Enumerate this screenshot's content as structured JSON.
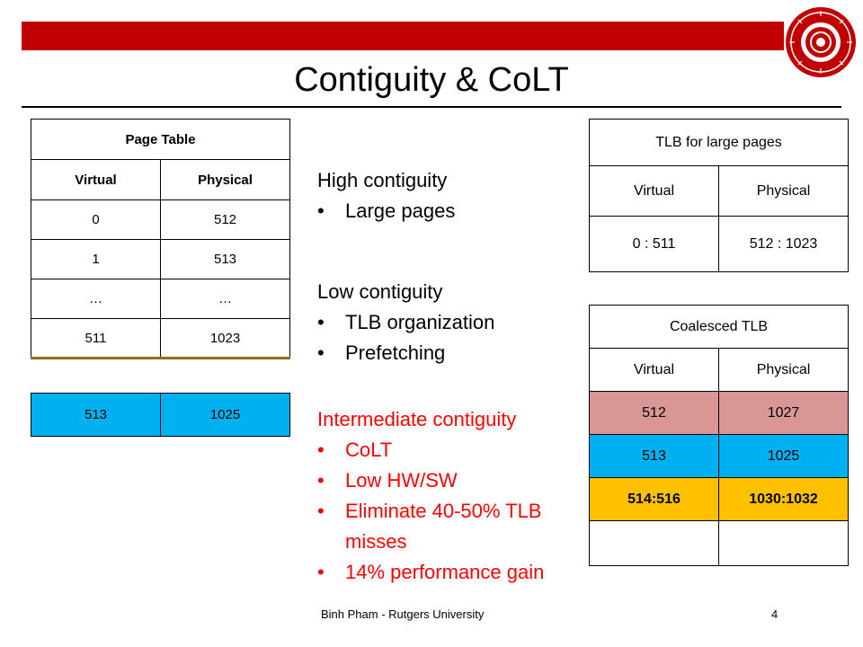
{
  "title": "Contiguity & CoLT",
  "page_table": {
    "heading": "Page Table",
    "col_virtual": "Virtual",
    "col_physical": "Physical",
    "rows": [
      {
        "virtual": "0",
        "physical": "512"
      },
      {
        "virtual": "1",
        "physical": "513"
      },
      {
        "virtual": "…",
        "physical": "…"
      },
      {
        "virtual": "511",
        "physical": "1023"
      }
    ],
    "extra_row": {
      "virtual": "513",
      "physical": "1025"
    }
  },
  "text": {
    "high_head": "High contiguity",
    "high_items": [
      "Large pages"
    ],
    "low_head": "Low contiguity",
    "low_items": [
      "TLB organization",
      "Prefetching"
    ],
    "mid_head": "Intermediate contiguity",
    "mid_items": [
      "CoLT",
      "Low HW/SW",
      "Eliminate 40-50% TLB misses",
      "14% performance gain"
    ]
  },
  "tlb_large": {
    "heading": "TLB for large pages",
    "col_virtual": "Virtual",
    "col_physical": "Physical",
    "rows": [
      {
        "virtual": "0 : 511",
        "physical": "512 : 1023"
      }
    ]
  },
  "coalesced_tlb": {
    "heading": "Coalesced TLB",
    "col_virtual": "Virtual",
    "col_physical": "Physical",
    "rows": [
      {
        "virtual": "512",
        "physical": "1027"
      },
      {
        "virtual": "513",
        "physical": "1025"
      },
      {
        "virtual": "514:516",
        "physical": "1030:1032"
      },
      {
        "virtual": "",
        "physical": ""
      }
    ]
  },
  "footer": {
    "author": "Binh Pham - Rutgers University",
    "page": "4"
  },
  "colors": {
    "accent_red": "#c00000",
    "highlight_blue": "#00b0f0",
    "highlight_pink": "#d99694",
    "highlight_gold": "#ffc000",
    "text_red": "#ff0000"
  }
}
